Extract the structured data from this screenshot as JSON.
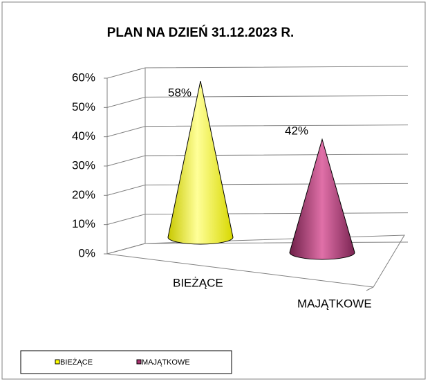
{
  "chart_data": {
    "type": "cone3d",
    "title": "PLAN NA DZIEŃ 31.12.2023 R.",
    "categories": [
      "BIEŻĄCE",
      "MAJĄTKOWE"
    ],
    "values": [
      58,
      42
    ],
    "value_labels": [
      "58%",
      "42%"
    ],
    "colors": [
      "#ffff00",
      "#a8336f"
    ],
    "ylim": [
      0,
      60
    ],
    "yticks": [
      {
        "value": 0,
        "label": "0%"
      },
      {
        "value": 10,
        "label": "10%"
      },
      {
        "value": 20,
        "label": "20%"
      },
      {
        "value": 30,
        "label": "30%"
      },
      {
        "value": 40,
        "label": "40%"
      },
      {
        "value": 50,
        "label": "50%"
      },
      {
        "value": 60,
        "label": "60%"
      }
    ],
    "grid": true,
    "legend": "bottom-left"
  }
}
